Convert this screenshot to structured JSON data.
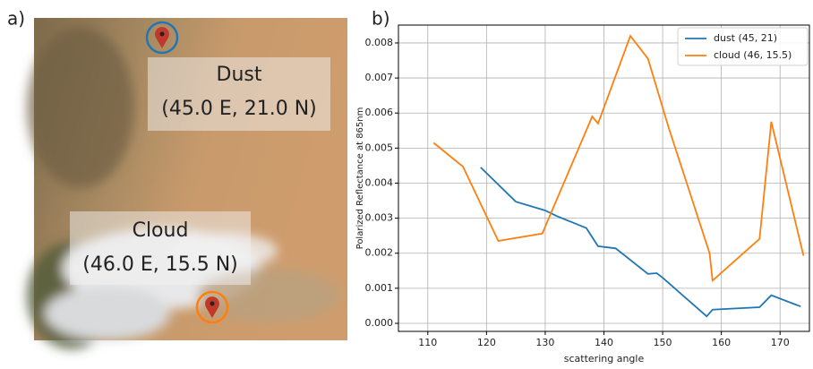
{
  "image": {
    "panel_label": "a)",
    "labels": [
      {
        "title": "Dust",
        "coords": "(45.0 E, 21.0 N)"
      },
      {
        "title": "Cloud",
        "coords": "(46.0 E, 15.5 N)"
      }
    ]
  },
  "chart_data": {
    "type": "line",
    "panel_label": "b)",
    "x_label": "scattering angle",
    "y_label": "Polarized Reflectance at 865nm",
    "xlim": [
      105,
      175
    ],
    "ylim": [
      -0.00023,
      0.00851
    ],
    "xticks": [
      110,
      120,
      130,
      140,
      150,
      160,
      170
    ],
    "yticks": [
      {
        "value": 0,
        "label": "0.000"
      },
      {
        "value": 0.001,
        "label": "0.001"
      },
      {
        "value": 0.002,
        "label": "0.002"
      },
      {
        "value": 0.003,
        "label": "0.003"
      },
      {
        "value": 0.004,
        "label": "0.004"
      },
      {
        "value": 0.005,
        "label": "0.005"
      },
      {
        "value": 0.006,
        "label": "0.006"
      },
      {
        "value": 0.007,
        "label": "0.007"
      },
      {
        "value": 0.008,
        "label": "0.008"
      }
    ],
    "grid": true,
    "legend": "upper right",
    "series": [
      {
        "name": "dust (45, 21)",
        "color": "#1f77b4",
        "x": [
          119,
          125,
          130,
          132,
          137,
          139,
          142,
          147.5,
          149,
          150,
          157.5,
          158.5,
          166.5,
          168.5,
          173.5
        ],
        "values": [
          0.00445,
          0.00347,
          0.00322,
          0.00306,
          0.00272,
          0.0022,
          0.00214,
          0.00141,
          0.00143,
          0.0013,
          0.0002,
          0.00039,
          0.00046,
          0.0008,
          0.00048
        ]
      },
      {
        "name": "cloud (46, 15.5)",
        "color": "#ff7f0e",
        "x": [
          111,
          116,
          122,
          129.5,
          138,
          139,
          144.5,
          147.5,
          151,
          158,
          158.5,
          166.5,
          168.5,
          174
        ],
        "values": [
          0.00515,
          0.00447,
          0.00235,
          0.00256,
          0.0059,
          0.0057,
          0.0082,
          0.00755,
          0.0056,
          0.002,
          0.00122,
          0.00241,
          0.00575,
          0.00193
        ]
      }
    ]
  }
}
